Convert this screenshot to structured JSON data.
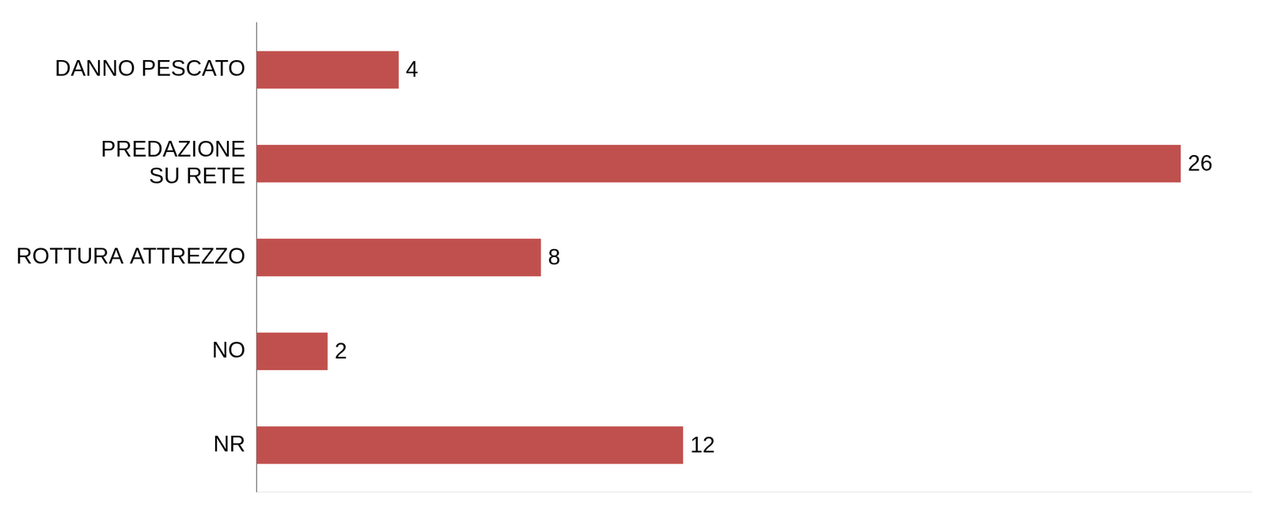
{
  "chart_data": {
    "type": "bar",
    "orientation": "horizontal",
    "categories": [
      "DANNO PESCATO",
      "PREDAZIONE SU RETE",
      "ROTTURA ATTREZZO",
      "NO",
      "NR"
    ],
    "values": [
      4,
      26,
      8,
      2,
      12
    ],
    "color": "#c0504d",
    "xlim": [
      0,
      28
    ],
    "xticks": [],
    "grid": false,
    "data_labels": true,
    "tick_labels": "y"
  }
}
